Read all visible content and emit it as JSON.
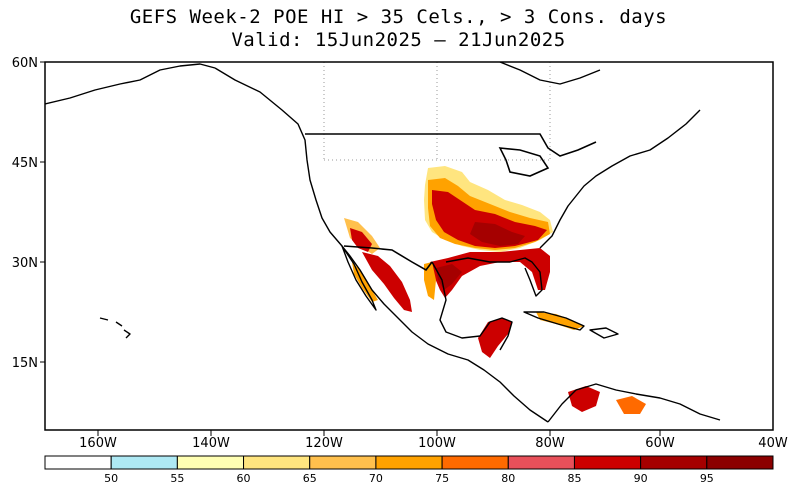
{
  "title": {
    "line1": "GEFS Week-2 POE HI > 35 Cels., > 3 Cons. days",
    "line2": "Valid: 15Jun2025 – 21Jun2025"
  },
  "axes": {
    "lat_labels": [
      "60N",
      "45N",
      "30N",
      "15N"
    ],
    "lon_labels": [
      "160W",
      "140W",
      "120W",
      "100W",
      "80W",
      "60W",
      "40W"
    ]
  },
  "colorbar": {
    "labels": [
      "50",
      "55",
      "60",
      "65",
      "70",
      "75",
      "80",
      "85",
      "90",
      "95"
    ],
    "colors": [
      "#ffffff",
      "#aee9f4",
      "#ffffb3",
      "#ffe57f",
      "#ffc04d",
      "#ffa200",
      "#ff6a00",
      "#e8505a",
      "#cc0000",
      "#a50000",
      "#8b0000"
    ]
  },
  "colors": {
    "land_outline": "#000000",
    "grid": "#999999"
  }
}
